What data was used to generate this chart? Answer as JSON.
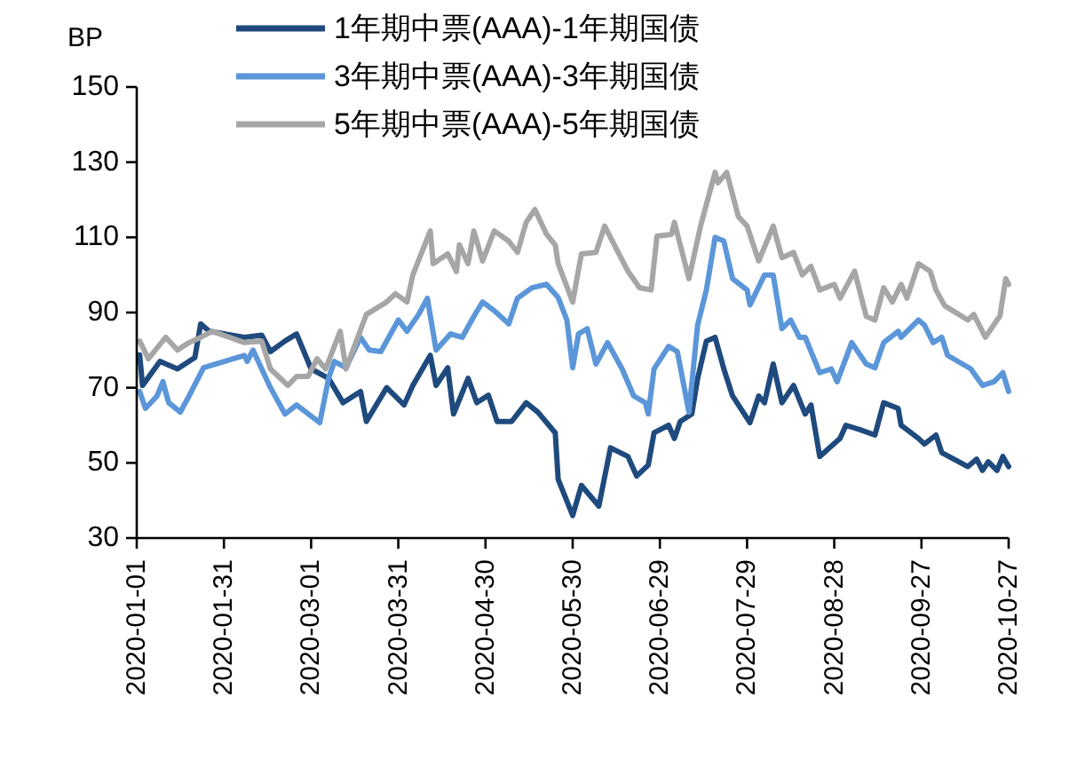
{
  "chart_data": {
    "type": "line",
    "ylabel": "BP",
    "legend": "top",
    "grid": false,
    "line_style": "solid",
    "marker": "none",
    "xlim": [
      "2020-01-01",
      "2020-10-27"
    ],
    "xticks": [
      "2020-01-01",
      "2020-01-31",
      "2020-03-01",
      "2020-03-31",
      "2020-04-30",
      "2020-05-30",
      "2020-06-29",
      "2020-07-29",
      "2020-08-28",
      "2020-09-27",
      "2020-10-27"
    ],
    "ylim": [
      30,
      150
    ],
    "yticks": [
      30,
      50,
      70,
      90,
      110,
      130,
      150
    ],
    "series": [
      {
        "name": "1年期中票(AAA)-1年期国债",
        "color": "#1f4a7e",
        "x": [
          "2020-01-02",
          "2020-01-03",
          "2020-01-09",
          "2020-01-15",
          "2020-01-21",
          "2020-01-23",
          "2020-01-26",
          "2020-02-07",
          "2020-02-13",
          "2020-02-16",
          "2020-02-21",
          "2020-02-25",
          "2020-03-01",
          "2020-03-07",
          "2020-03-12",
          "2020-03-18",
          "2020-03-20",
          "2020-03-27",
          "2020-04-02",
          "2020-04-05",
          "2020-04-11",
          "2020-04-13",
          "2020-04-17",
          "2020-04-19",
          "2020-04-24",
          "2020-04-27",
          "2020-05-01",
          "2020-05-04",
          "2020-05-09",
          "2020-05-14",
          "2020-05-18",
          "2020-05-24",
          "2020-05-25",
          "2020-05-30",
          "2020-06-02",
          "2020-06-08",
          "2020-06-12",
          "2020-06-18",
          "2020-06-21",
          "2020-06-25",
          "2020-06-27",
          "2020-07-02",
          "2020-07-04",
          "2020-07-06",
          "2020-07-10",
          "2020-07-12",
          "2020-07-15",
          "2020-07-18",
          "2020-07-21",
          "2020-07-24",
          "2020-07-30",
          "2020-08-02",
          "2020-08-04",
          "2020-08-07",
          "2020-08-10",
          "2020-08-14",
          "2020-08-18",
          "2020-08-20",
          "2020-08-23",
          "2020-08-30",
          "2020-09-01",
          "2020-09-06",
          "2020-09-11",
          "2020-09-14",
          "2020-09-19",
          "2020-09-20",
          "2020-09-26",
          "2020-09-28",
          "2020-10-02",
          "2020-10-04",
          "2020-10-13",
          "2020-10-16",
          "2020-10-18",
          "2020-10-20",
          "2020-10-23",
          "2020-10-25",
          "2020-10-27"
        ],
        "values": [
          78.7,
          70.6,
          77,
          75,
          78,
          87,
          85,
          83.4,
          84,
          79.6,
          82.4,
          84.3,
          75,
          72.5,
          66,
          69,
          61,
          70,
          65.4,
          70.6,
          78.6,
          70.6,
          75.3,
          63,
          72.5,
          66,
          68,
          61,
          61,
          66,
          63.5,
          58,
          45.6,
          36,
          44,
          38.5,
          54,
          51.7,
          46.5,
          49.4,
          58,
          60,
          56.5,
          61,
          63,
          72.5,
          82.4,
          83.4,
          75,
          67.8,
          60.7,
          67.8,
          66,
          76.3,
          66,
          70.6,
          63,
          65.4,
          51.7,
          56.5,
          60,
          58.8,
          57.4,
          66,
          64.5,
          60,
          56.5,
          55,
          57.4,
          52.7,
          49,
          51,
          48,
          50.3,
          48,
          51.7,
          49
        ]
      },
      {
        "name": "3年期中票(AAA)-3年期国债",
        "color": "#5b96d9",
        "x": [
          "2020-01-02",
          "2020-01-04",
          "2020-01-08",
          "2020-01-10",
          "2020-01-12",
          "2020-01-16",
          "2020-01-19",
          "2020-01-24",
          "2020-02-07",
          "2020-02-08",
          "2020-02-10",
          "2020-02-16",
          "2020-02-21",
          "2020-02-25",
          "2020-03-04",
          "2020-03-07",
          "2020-03-09",
          "2020-03-13",
          "2020-03-18",
          "2020-03-21",
          "2020-03-25",
          "2020-03-31",
          "2020-04-03",
          "2020-04-07",
          "2020-04-10",
          "2020-04-13",
          "2020-04-18",
          "2020-04-22",
          "2020-04-26",
          "2020-04-29",
          "2020-05-03",
          "2020-05-08",
          "2020-05-11",
          "2020-05-16",
          "2020-05-21",
          "2020-05-25",
          "2020-05-28",
          "2020-05-30",
          "2020-06-01",
          "2020-06-04",
          "2020-06-07",
          "2020-06-11",
          "2020-06-16",
          "2020-06-20",
          "2020-06-24",
          "2020-06-25",
          "2020-06-27",
          "2020-07-02",
          "2020-07-05",
          "2020-07-09",
          "2020-07-12",
          "2020-07-15",
          "2020-07-18",
          "2020-07-21",
          "2020-07-24",
          "2020-07-29",
          "2020-07-30",
          "2020-08-04",
          "2020-08-07",
          "2020-08-10",
          "2020-08-13",
          "2020-08-16",
          "2020-08-18",
          "2020-08-23",
          "2020-08-27",
          "2020-08-29",
          "2020-09-03",
          "2020-09-08",
          "2020-09-11",
          "2020-09-14",
          "2020-09-19",
          "2020-09-20",
          "2020-09-26",
          "2020-09-28",
          "2020-10-01",
          "2020-10-04",
          "2020-10-06",
          "2020-10-14",
          "2020-10-18",
          "2020-10-22",
          "2020-10-25",
          "2020-10-27"
        ],
        "values": [
          69,
          64.5,
          67.8,
          71.6,
          66,
          63.5,
          67.8,
          75.3,
          78.6,
          77,
          80,
          70,
          63,
          65.4,
          60.7,
          72.5,
          77,
          75.3,
          83.4,
          80,
          79.6,
          88,
          85,
          89.5,
          93.8,
          80,
          84.3,
          83.4,
          89,
          92.8,
          90.5,
          87,
          93.8,
          96.6,
          97.5,
          94,
          88,
          75.3,
          84.3,
          85.7,
          76.3,
          82,
          75,
          67.8,
          66,
          63,
          75,
          81,
          79.6,
          63.5,
          86.7,
          96,
          110,
          109,
          99,
          96,
          92,
          100,
          100,
          85.7,
          88,
          83.4,
          83.4,
          74,
          75,
          71.6,
          82,
          76.3,
          75.3,
          82,
          85,
          83.4,
          88,
          86.7,
          82,
          83.4,
          78.6,
          75,
          70.6,
          71.6,
          74,
          69
        ]
      },
      {
        "name": "5年期中票(AAA)-5年期国债",
        "color": "#a6a6a6",
        "x": [
          "2020-01-02",
          "2020-01-05",
          "2020-01-11",
          "2020-01-15",
          "2020-01-19",
          "2020-01-23",
          "2020-01-27",
          "2020-02-07",
          "2020-02-13",
          "2020-02-16",
          "2020-02-22",
          "2020-02-25",
          "2020-02-29",
          "2020-03-03",
          "2020-03-06",
          "2020-03-11",
          "2020-03-13",
          "2020-03-20",
          "2020-03-27",
          "2020-03-30",
          "2020-04-03",
          "2020-04-05",
          "2020-04-11",
          "2020-04-12",
          "2020-04-17",
          "2020-04-20",
          "2020-04-21",
          "2020-04-24",
          "2020-04-26",
          "2020-04-29",
          "2020-05-03",
          "2020-05-08",
          "2020-05-11",
          "2020-05-14",
          "2020-05-17",
          "2020-05-21",
          "2020-05-24",
          "2020-05-25",
          "2020-05-30",
          "2020-06-02",
          "2020-06-07",
          "2020-06-10",
          "2020-06-14",
          "2020-06-18",
          "2020-06-22",
          "2020-06-26",
          "2020-06-28",
          "2020-07-03",
          "2020-07-04",
          "2020-07-06",
          "2020-07-09",
          "2020-07-13",
          "2020-07-18",
          "2020-07-19",
          "2020-07-22",
          "2020-07-26",
          "2020-07-29",
          "2020-08-02",
          "2020-08-07",
          "2020-08-10",
          "2020-08-14",
          "2020-08-17",
          "2020-08-20",
          "2020-08-23",
          "2020-08-28",
          "2020-08-30",
          "2020-09-04",
          "2020-09-08",
          "2020-09-11",
          "2020-09-14",
          "2020-09-17",
          "2020-09-20",
          "2020-09-22",
          "2020-09-26",
          "2020-09-30",
          "2020-10-02",
          "2020-10-05",
          "2020-10-13",
          "2020-10-15",
          "2020-10-19",
          "2020-10-23",
          "2020-10-24",
          "2020-10-26",
          "2020-10-27"
        ],
        "values": [
          82.4,
          77.7,
          83.4,
          80,
          82,
          83.4,
          85,
          82,
          82.4,
          75,
          70.6,
          73,
          73,
          77.7,
          75,
          85,
          75,
          89.5,
          92.8,
          95,
          92.8,
          100,
          111.7,
          103,
          105.6,
          100.9,
          108,
          103,
          111.7,
          103.7,
          111.7,
          109,
          106,
          114,
          117.4,
          110.8,
          108,
          103,
          92.8,
          105.6,
          106,
          113,
          107,
          101,
          96.6,
          96,
          110.3,
          110.8,
          114,
          108,
          99,
          113,
          127.3,
          124.5,
          127.3,
          115.5,
          113,
          103.7,
          113,
          104.6,
          106,
          100,
          102.3,
          96,
          97.5,
          93.8,
          101,
          89,
          88,
          96.6,
          92.8,
          97.5,
          93.8,
          103,
          101,
          96,
          91.8,
          88,
          89.5,
          83.4,
          88,
          89,
          99,
          97.5
        ]
      }
    ]
  }
}
